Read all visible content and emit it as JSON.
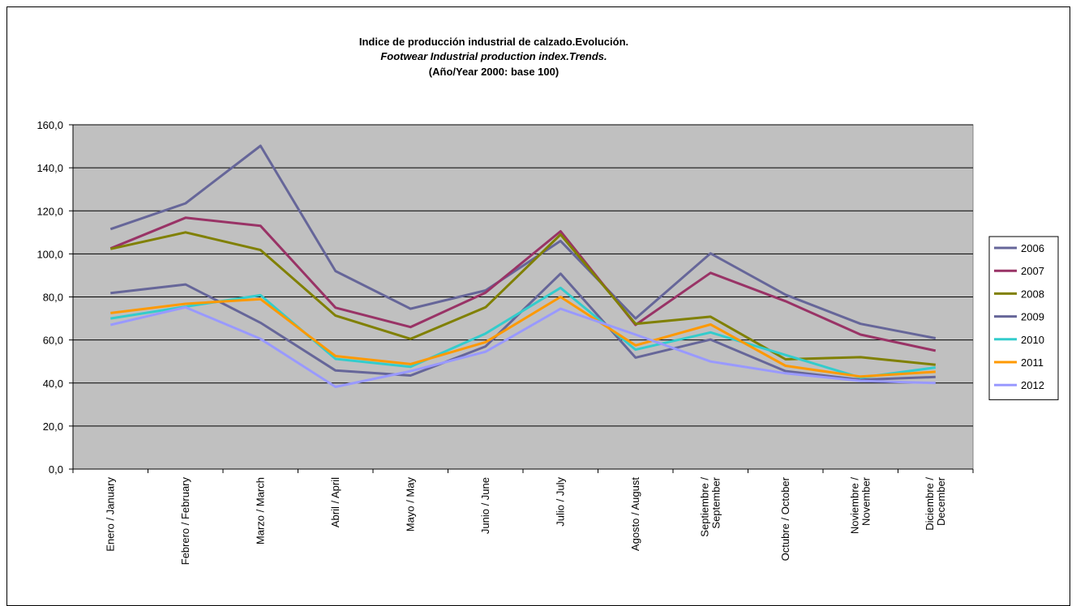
{
  "chart_data": {
    "type": "line",
    "title": "Indice de producción industrial de calzado.Evolución.",
    "subtitle": "Footwear Industrial production index.Trends.",
    "subtitle2": "(Año/Year 2000: base 100)",
    "xlabel": "",
    "ylabel": "",
    "ylim": [
      0,
      160
    ],
    "y_ticks": [
      "0,0",
      "20,0",
      "40,0",
      "60,0",
      "80,0",
      "100,0",
      "120,0",
      "140,0",
      "160,0"
    ],
    "y_tick_values": [
      0,
      20,
      40,
      60,
      80,
      100,
      120,
      140,
      160
    ],
    "grid": true,
    "legend_position": "right",
    "categories": [
      [
        "Enero / January"
      ],
      [
        "Febrero / February"
      ],
      [
        "Marzo / March"
      ],
      [
        "Abril  / April"
      ],
      [
        "Mayo / May"
      ],
      [
        "Junio / June"
      ],
      [
        "Julio  /  July"
      ],
      [
        "Agosto / August"
      ],
      [
        "Septiembre /",
        "September"
      ],
      [
        "Octubre / October"
      ],
      [
        "Noviembre /",
        "November"
      ],
      [
        "Diciembre /",
        "December"
      ]
    ],
    "series": [
      {
        "name": "2006",
        "color": "#666699",
        "values": [
          111.5,
          123.5,
          150.2,
          92.0,
          74.5,
          83.0,
          106.0,
          70.0,
          100.2,
          81.0,
          67.5,
          60.8
        ]
      },
      {
        "name": "2007",
        "color": "#993366",
        "values": [
          102.5,
          116.8,
          113.0,
          75.0,
          66.0,
          82.0,
          110.5,
          67.0,
          91.2,
          78.0,
          62.5,
          55.0
        ]
      },
      {
        "name": "2008",
        "color": "#808000",
        "values": [
          102.3,
          110.0,
          101.8,
          71.3,
          60.5,
          75.2,
          109.0,
          67.5,
          70.8,
          51.0,
          52.0,
          48.5
        ]
      },
      {
        "name": "2009",
        "color": "#666699",
        "values": [
          81.8,
          85.8,
          68.0,
          45.8,
          43.5,
          57.0,
          90.8,
          51.8,
          60.2,
          45.5,
          41.5,
          42.8
        ]
      },
      {
        "name": "2010",
        "color": "#33CCCC",
        "values": [
          70.0,
          75.5,
          80.8,
          51.2,
          47.5,
          63.0,
          84.2,
          55.5,
          63.5,
          53.0,
          42.5,
          47.2
        ]
      },
      {
        "name": "2011",
        "color": "#FF9900",
        "values": [
          72.5,
          76.8,
          79.0,
          52.5,
          48.8,
          59.0,
          80.0,
          57.5,
          67.2,
          48.0,
          43.0,
          45.2
        ]
      },
      {
        "name": "2012",
        "color": "#9999FF",
        "values": [
          67.0,
          75.2,
          60.5,
          38.2,
          45.5,
          54.5,
          74.5,
          62.5,
          50.0,
          44.5,
          41.0,
          40.0
        ]
      }
    ]
  }
}
